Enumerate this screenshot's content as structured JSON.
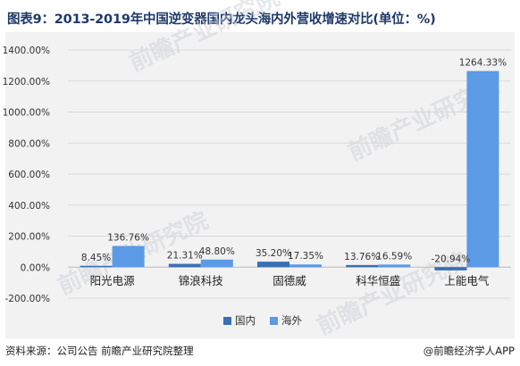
{
  "title": "图表9：2013-2019年中国逆变器国内龙头海内外营收增速对比(单位：%)",
  "footer": {
    "source": "资料来源：公司公告   前瞻产业研究院整理",
    "brand": "@前瞻经济学人APP"
  },
  "colors": {
    "domestic": "#3a6fb7",
    "overseas": "#5b9be6",
    "panel": "#f2f2f2",
    "grid": "#d9d9d9"
  },
  "chart_data": {
    "type": "bar",
    "categories": [
      "阳光电源",
      "锦浪科技",
      "固德威",
      "科华恒盛",
      "上能电气"
    ],
    "series": [
      {
        "name": "国内",
        "values": [
          8.45,
          21.31,
          35.2,
          13.76,
          -20.94
        ],
        "labels": [
          "8.45%",
          "21.31%",
          "35.20%",
          "13.76%",
          "-20.94%"
        ]
      },
      {
        "name": "海外",
        "values": [
          136.76,
          48.8,
          17.35,
          16.59,
          1264.33
        ],
        "labels": [
          "136.76%",
          "48.80%",
          "17.35%",
          "16.59%",
          "1264.33%"
        ]
      }
    ],
    "ylim": [
      -200,
      1400
    ],
    "yticks": [
      -200,
      0,
      200,
      400,
      600,
      800,
      1000,
      1200,
      1400
    ],
    "ytick_labels": [
      "-200.00%",
      "0.00%",
      "200.00%",
      "400.00%",
      "600.00%",
      "800.00%",
      "1000.00%",
      "1200.00%",
      "1400.00%"
    ],
    "grid": true,
    "legend_position": "bottom-center",
    "xlabel": "",
    "ylabel": ""
  }
}
